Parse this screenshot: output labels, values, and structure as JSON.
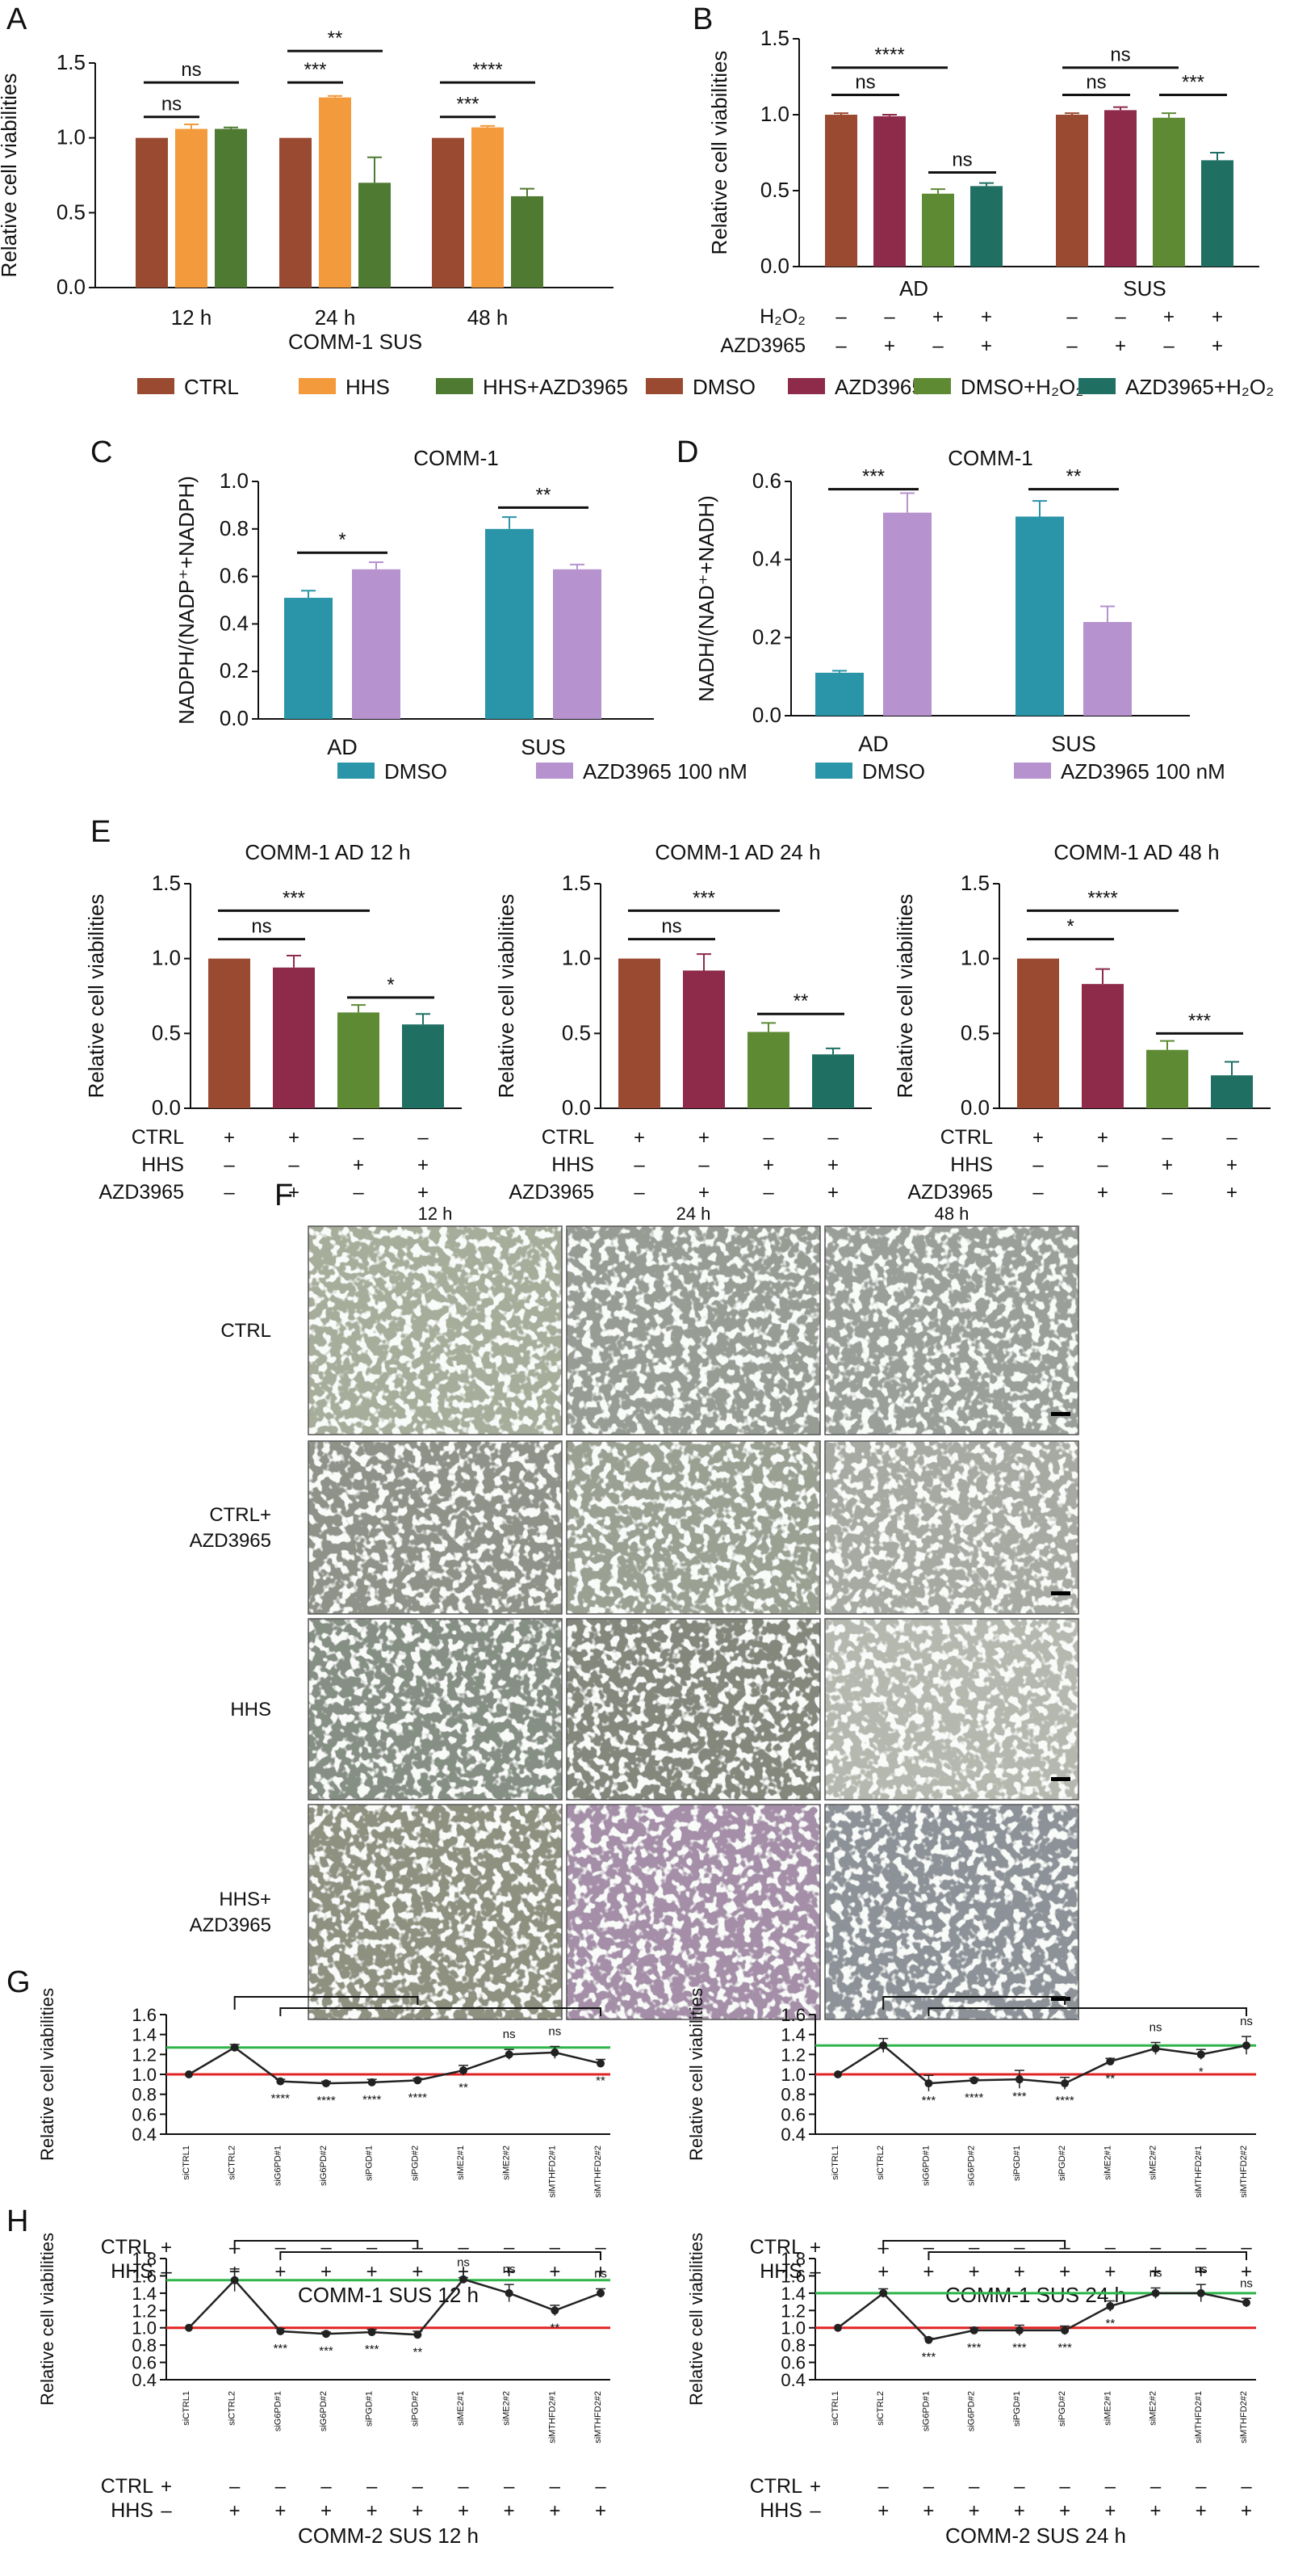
{
  "colors": {
    "ctrl": "#9b4a32",
    "hhs": "#f39a3c",
    "hhs_azd": "#4f7a32",
    "dmso": "#9b4a32",
    "azd": "#8e2a4a",
    "dmso_h2o2": "#5e8a34",
    "azd_h2o2": "#1f6f62",
    "dmso_teal": "#2a95a8",
    "azd_lilac": "#b692cf",
    "green_line": "#2fb54a",
    "red_line": "#e02424"
  },
  "panel_letters": [
    "A",
    "B",
    "C",
    "D",
    "E",
    "F",
    "G",
    "H"
  ],
  "legend_ab": [
    "CTRL",
    "HHS",
    "HHS+AZD3965",
    "DMSO",
    "AZD3965",
    "DMSO+H₂O₂",
    "AZD3965+H₂O₂"
  ],
  "legend_cd": [
    "DMSO",
    "AZD3965 100 nM"
  ],
  "chart_data": [
    {
      "id": "A",
      "type": "bar",
      "title": "",
      "ylabel": "Relative cell viabilities",
      "xlabel": "COMM-1 SUS",
      "ylim": [
        0,
        1.5
      ],
      "yticks": [
        "0.0",
        "0.5",
        "1.0",
        "1.5"
      ],
      "categories": [
        "12 h",
        "24 h",
        "48 h"
      ],
      "series": [
        {
          "name": "CTRL",
          "values": [
            1.0,
            1.0,
            1.0
          ],
          "err": [
            0,
            0,
            0
          ]
        },
        {
          "name": "HHS",
          "values": [
            1.06,
            1.27,
            1.07
          ],
          "err": [
            0.03,
            0.01,
            0.01
          ]
        },
        {
          "name": "HHS+AZD3965",
          "values": [
            1.06,
            0.7,
            0.61
          ],
          "err": [
            0.01,
            0.17,
            0.05
          ]
        }
      ],
      "annotations": [
        {
          "cat": 0,
          "from": 0,
          "to": 1,
          "level": 1.14,
          "text": "ns"
        },
        {
          "cat": 0,
          "from": 0,
          "to": 2,
          "level": 1.37,
          "text": "ns"
        },
        {
          "cat": 1,
          "from": 0,
          "to": 1,
          "level": 1.37,
          "text": "***"
        },
        {
          "cat": 1,
          "from": 0,
          "to": 2,
          "level": 1.58,
          "text": "**"
        },
        {
          "cat": 2,
          "from": 0,
          "to": 1,
          "level": 1.14,
          "text": "***"
        },
        {
          "cat": 2,
          "from": 0,
          "to": 2,
          "level": 1.37,
          "text": "****"
        }
      ]
    },
    {
      "id": "B",
      "type": "bar",
      "title": "",
      "ylabel": "Relative cell viabilities",
      "xlabel": "",
      "ylim": [
        0,
        1.5
      ],
      "yticks": [
        "0.0",
        "0.5",
        "1.0",
        "1.5"
      ],
      "categories": [
        "AD",
        "SUS"
      ],
      "series": [
        {
          "name": "DMSO",
          "values": [
            1.0,
            1.0
          ],
          "err": [
            0.01,
            0.01
          ]
        },
        {
          "name": "AZD3965",
          "values": [
            0.99,
            1.03
          ],
          "err": [
            0.01,
            0.02
          ]
        },
        {
          "name": "DMSO+H₂O₂",
          "values": [
            0.48,
            0.98
          ],
          "err": [
            0.03,
            0.03
          ]
        },
        {
          "name": "AZD3965+H₂O₂",
          "values": [
            0.53,
            0.7
          ],
          "err": [
            0.02,
            0.05
          ]
        }
      ],
      "conditions": {
        "rows": [
          "H₂O₂",
          "AZD3965"
        ],
        "values": [
          [
            "–",
            "–",
            "+",
            "+",
            "–",
            "–",
            "+",
            "+"
          ],
          [
            "–",
            "+",
            "–",
            "+",
            "–",
            "+",
            "–",
            "+"
          ]
        ]
      },
      "annotations": [
        {
          "cat": 0,
          "from": 0,
          "to": 1,
          "level": 1.13,
          "text": "ns"
        },
        {
          "cat": 0,
          "from": 0,
          "to": 2,
          "level": 1.31,
          "text": "****"
        },
        {
          "cat": 0,
          "from": 2,
          "to": 3,
          "level": 0.62,
          "text": "ns"
        },
        {
          "cat": 1,
          "from": 0,
          "to": 1,
          "level": 1.13,
          "text": "ns"
        },
        {
          "cat": 1,
          "from": 0,
          "to": 2,
          "level": 1.31,
          "text": "ns"
        },
        {
          "cat": 1,
          "from": 2,
          "to": 3,
          "level": 1.13,
          "text": "***"
        }
      ]
    },
    {
      "id": "C",
      "type": "bar",
      "title": "COMM-1",
      "ylabel": "NADPH/(NADP⁺+NADPH)",
      "xlabel": "",
      "ylim": [
        0,
        1.0
      ],
      "yticks": [
        "0.0",
        "0.2",
        "0.4",
        "0.6",
        "0.8",
        "1.0"
      ],
      "categories": [
        "AD",
        "SUS"
      ],
      "series": [
        {
          "name": "DMSO",
          "values": [
            0.51,
            0.8
          ],
          "err": [
            0.03,
            0.05
          ]
        },
        {
          "name": "AZD3965 100 nM",
          "values": [
            0.63,
            0.63
          ],
          "err": [
            0.03,
            0.02
          ]
        }
      ],
      "annotations": [
        {
          "cat": 0,
          "from": 0,
          "to": 1,
          "level": 0.7,
          "text": "*"
        },
        {
          "cat": 1,
          "from": 0,
          "to": 1,
          "level": 0.89,
          "text": "**"
        }
      ]
    },
    {
      "id": "D",
      "type": "bar",
      "title": "COMM-1",
      "ylabel": "NADH/(NAD⁺+NADH)",
      "xlabel": "",
      "ylim": [
        0,
        0.6
      ],
      "yticks": [
        "0.0",
        "0.2",
        "0.4",
        "0.6"
      ],
      "categories": [
        "AD",
        "SUS"
      ],
      "series": [
        {
          "name": "DMSO",
          "values": [
            0.11,
            0.51
          ],
          "err": [
            0.005,
            0.04
          ]
        },
        {
          "name": "AZD3965 100 nM",
          "values": [
            0.52,
            0.24
          ],
          "err": [
            0.05,
            0.04
          ]
        }
      ],
      "annotations": [
        {
          "cat": 0,
          "from": 0,
          "to": 1,
          "level": 0.58,
          "text": "***"
        },
        {
          "cat": 1,
          "from": 0,
          "to": 1,
          "level": 0.58,
          "text": "**"
        }
      ]
    },
    {
      "id": "E1",
      "type": "bar",
      "title": "COMM-1 AD 12 h",
      "ylabel": "Relative cell viabilities",
      "ylim": [
        0,
        1.5
      ],
      "yticks": [
        "0.0",
        "0.5",
        "1.0",
        "1.5"
      ],
      "values": [
        1.0,
        0.94,
        0.64,
        0.56
      ],
      "err": [
        0,
        0.08,
        0.05,
        0.07
      ],
      "conditions": {
        "rows": [
          "CTRL",
          "HHS",
          "AZD3965"
        ],
        "values": [
          [
            "+",
            "+",
            "–",
            "–"
          ],
          [
            "–",
            "–",
            "+",
            "+"
          ],
          [
            "–",
            "+",
            "–",
            "+"
          ]
        ]
      },
      "annotations": [
        {
          "from": 0,
          "to": 1,
          "level": 1.13,
          "text": "ns"
        },
        {
          "from": 0,
          "to": 2,
          "level": 1.32,
          "text": "***"
        },
        {
          "from": 2,
          "to": 3,
          "level": 0.74,
          "text": "*"
        }
      ]
    },
    {
      "id": "E2",
      "type": "bar",
      "title": "COMM-1 AD 24 h",
      "ylabel": "Relative cell viabilities",
      "ylim": [
        0,
        1.5
      ],
      "yticks": [
        "0.0",
        "0.5",
        "1.0",
        "1.5"
      ],
      "values": [
        1.0,
        0.92,
        0.51,
        0.36
      ],
      "err": [
        0,
        0.11,
        0.06,
        0.04
      ],
      "conditions": {
        "rows": [
          "CTRL",
          "HHS",
          "AZD3965"
        ],
        "values": [
          [
            "+",
            "+",
            "–",
            "–"
          ],
          [
            "–",
            "–",
            "+",
            "+"
          ],
          [
            "–",
            "+",
            "–",
            "+"
          ]
        ]
      },
      "annotations": [
        {
          "from": 0,
          "to": 1,
          "level": 1.13,
          "text": "ns"
        },
        {
          "from": 0,
          "to": 2,
          "level": 1.32,
          "text": "***"
        },
        {
          "from": 2,
          "to": 3,
          "level": 0.63,
          "text": "**"
        }
      ]
    },
    {
      "id": "E3",
      "type": "bar",
      "title": "COMM-1 AD 48 h",
      "ylabel": "Relative cell viabilities",
      "ylim": [
        0,
        1.5
      ],
      "yticks": [
        "0.0",
        "0.5",
        "1.0",
        "1.5"
      ],
      "values": [
        1.0,
        0.83,
        0.39,
        0.22
      ],
      "err": [
        0,
        0.1,
        0.06,
        0.09
      ],
      "conditions": {
        "rows": [
          "CTRL",
          "HHS",
          "AZD3965"
        ],
        "values": [
          [
            "+",
            "+",
            "–",
            "–"
          ],
          [
            "–",
            "–",
            "+",
            "+"
          ],
          [
            "–",
            "+",
            "–",
            "+"
          ]
        ]
      },
      "annotations": [
        {
          "from": 0,
          "to": 1,
          "level": 1.13,
          "text": "*"
        },
        {
          "from": 0,
          "to": 2,
          "level": 1.32,
          "text": "****"
        },
        {
          "from": 2,
          "to": 3,
          "level": 0.5,
          "text": "***"
        }
      ]
    },
    {
      "id": "G1",
      "type": "line",
      "title": "COMM-1 SUS 12 h",
      "ylabel": "Relative cell viabilities",
      "ylim": [
        0.4,
        1.6
      ],
      "yticks": [
        "0.4",
        "0.6",
        "0.8",
        "1.0",
        "1.2",
        "1.4",
        "1.6"
      ],
      "categories": [
        "siCTRL1",
        "siCTRL2",
        "siG6PD#1",
        "siG6PD#2",
        "siPGD#1",
        "siPGD#2",
        "siME2#1",
        "siME2#2",
        "siMTHFD2#1",
        "siMTHFD2#2"
      ],
      "values": [
        1.0,
        1.27,
        0.93,
        0.91,
        0.92,
        0.94,
        1.04,
        1.2,
        1.22,
        1.11
      ],
      "err": [
        0,
        0.03,
        0.02,
        0.02,
        0.03,
        0.02,
        0.05,
        0.05,
        0.06,
        0.04
      ],
      "sig": [
        "",
        "",
        "****",
        "****",
        "****",
        "****",
        "**",
        "ns",
        "ns",
        "**"
      ],
      "green": 1.27,
      "red": 1.0,
      "conditions": {
        "rows": [
          "CTRL",
          "HHS"
        ],
        "values": [
          [
            "+",
            "–",
            "–",
            "–",
            "–",
            "–",
            "–",
            "–",
            "–",
            "–"
          ],
          [
            "–",
            "+",
            "+",
            "+",
            "+",
            "+",
            "+",
            "+",
            "+",
            "+"
          ]
        ]
      }
    },
    {
      "id": "G2",
      "type": "line",
      "title": "COMM-1 SUS 24 h",
      "ylabel": "Relative cell viabilities",
      "ylim": [
        0.4,
        1.6
      ],
      "yticks": [
        "0.4",
        "0.6",
        "0.8",
        "1.0",
        "1.2",
        "1.4",
        "1.6"
      ],
      "categories": [
        "siCTRL1",
        "siCTRL2",
        "siG6PD#1",
        "siG6PD#2",
        "siPGD#1",
        "siPGD#2",
        "siME2#1",
        "siME2#2",
        "siMTHFD2#1",
        "siMTHFD2#2"
      ],
      "values": [
        1.0,
        1.29,
        0.91,
        0.94,
        0.95,
        0.91,
        1.13,
        1.26,
        1.2,
        1.29
      ],
      "err": [
        0,
        0.07,
        0.08,
        0.02,
        0.09,
        0.06,
        0.03,
        0.06,
        0.05,
        0.09
      ],
      "sig": [
        "",
        "",
        "***",
        "****",
        "***",
        "****",
        "**",
        "ns",
        "*",
        "ns"
      ],
      "green": 1.29,
      "red": 1.0,
      "conditions": {
        "rows": [
          "CTRL",
          "HHS"
        ],
        "values": [
          [
            "+",
            "–",
            "–",
            "–",
            "–",
            "–",
            "–",
            "–",
            "–",
            "–"
          ],
          [
            "–",
            "+",
            "+",
            "+",
            "+",
            "+",
            "+",
            "+",
            "+",
            "+"
          ]
        ]
      }
    },
    {
      "id": "H1",
      "type": "line",
      "title": "COMM-2 SUS 12 h",
      "ylabel": "Relative cell viabilities",
      "ylim": [
        0.4,
        1.8
      ],
      "yticks": [
        "0.4",
        "0.6",
        "0.8",
        "1.0",
        "1.2",
        "1.4",
        "1.6",
        "1.8"
      ],
      "categories": [
        "siCTRL1",
        "siCTRL2",
        "siG6PD#1",
        "siG6PD#2",
        "siPGD#1",
        "siPGD#2",
        "siME2#1",
        "siME2#2",
        "siMTHFD2#1",
        "siMTHFD2#2"
      ],
      "values": [
        1.0,
        1.55,
        0.96,
        0.93,
        0.95,
        0.92,
        1.56,
        1.4,
        1.2,
        1.4
      ],
      "err": [
        0,
        0.13,
        0.03,
        0.02,
        0.03,
        0.04,
        0.02,
        0.1,
        0.06,
        0.05
      ],
      "sig": [
        "",
        "",
        "***",
        "***",
        "***",
        "**",
        "ns",
        "ns",
        "**",
        "ns"
      ],
      "green": 1.55,
      "red": 1.0,
      "conditions": {
        "rows": [
          "CTRL",
          "HHS"
        ],
        "values": [
          [
            "+",
            "–",
            "–",
            "–",
            "–",
            "–",
            "–",
            "–",
            "–",
            "–"
          ],
          [
            "–",
            "+",
            "+",
            "+",
            "+",
            "+",
            "+",
            "+",
            "+",
            "+"
          ]
        ]
      }
    },
    {
      "id": "H2",
      "type": "line",
      "title": "COMM-2 SUS 24 h",
      "ylabel": "Relative cell viabilities",
      "ylim": [
        0.4,
        1.8
      ],
      "yticks": [
        "0.4",
        "0.6",
        "0.8",
        "1.0",
        "1.2",
        "1.4",
        "1.6",
        "1.8"
      ],
      "categories": [
        "siCTRL1",
        "siCTRL2",
        "siG6PD#1",
        "siG6PD#2",
        "siPGD#1",
        "siPGD#2",
        "siME2#1",
        "siME2#2",
        "siMTHFD2#1",
        "siMTHFD2#2"
      ],
      "values": [
        1.0,
        1.4,
        0.86,
        0.97,
        0.97,
        0.97,
        1.25,
        1.4,
        1.4,
        1.29
      ],
      "err": [
        0,
        0.05,
        0.02,
        0.03,
        0.06,
        0.05,
        0.06,
        0.06,
        0.1,
        0.05
      ],
      "sig": [
        "",
        "",
        "***",
        "***",
        "***",
        "***",
        "**",
        "ns",
        "ns",
        "ns"
      ],
      "green": 1.4,
      "red": 1.0,
      "conditions": {
        "rows": [
          "CTRL",
          "HHS"
        ],
        "values": [
          [
            "+",
            "–",
            "–",
            "–",
            "–",
            "–",
            "–",
            "–",
            "–",
            "–"
          ],
          [
            "–",
            "+",
            "+",
            "+",
            "+",
            "+",
            "+",
            "+",
            "+",
            "+"
          ]
        ]
      }
    }
  ],
  "micrographs": {
    "columns": [
      "12 h",
      "24 h",
      "48 h"
    ],
    "rows": [
      [
        "CTRL"
      ],
      [
        "CTRL+",
        "AZD3965"
      ],
      [
        "HHS"
      ],
      [
        "HHS+",
        "AZD3965"
      ]
    ]
  }
}
